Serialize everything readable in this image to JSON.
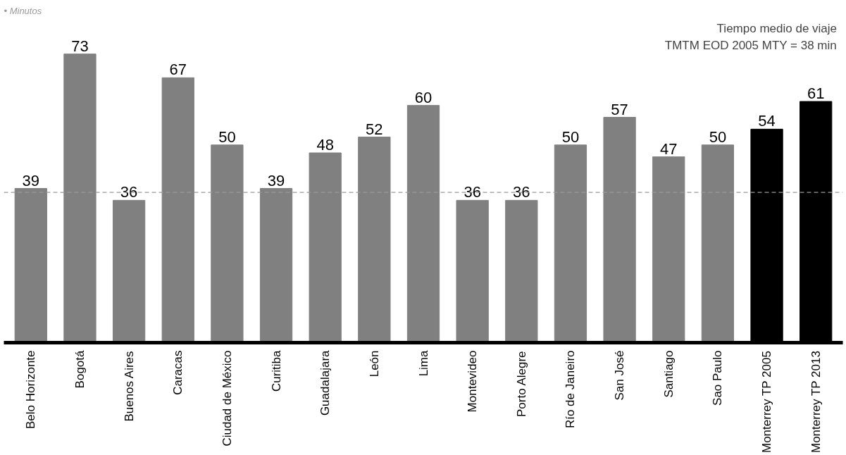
{
  "chart_data": {
    "type": "bar",
    "title": "• Minutos",
    "categories": [
      "Belo Horizonte",
      "Bogotá",
      "Buenos Aires",
      "Caracas",
      "Ciudad de México",
      "Curitiba",
      "Guadalajara",
      "León",
      "Lima",
      "Montevideo",
      "Porto Alegre",
      "Río de Janeiro",
      "San José",
      "Santiago",
      "Sao Paulo",
      "Monterrey TP 2005",
      "Monterrey TP 2013"
    ],
    "values": [
      39,
      73,
      36,
      67,
      50,
      39,
      48,
      52,
      60,
      36,
      36,
      50,
      57,
      47,
      50,
      54,
      61
    ],
    "colors": [
      "#808080",
      "#808080",
      "#808080",
      "#808080",
      "#808080",
      "#808080",
      "#808080",
      "#808080",
      "#808080",
      "#808080",
      "#808080",
      "#808080",
      "#808080",
      "#808080",
      "#808080",
      "#000000",
      "#000000"
    ],
    "data_labels": true,
    "ref_lines": [
      {
        "axis": "y",
        "value": 38,
        "label": null,
        "color": "#999999",
        "line_style": "dashed"
      }
    ],
    "annotations": [
      "Tiempo medio de viaje",
      "TMTM EOD 2005 MTY = 38 min"
    ],
    "grid": false
  }
}
